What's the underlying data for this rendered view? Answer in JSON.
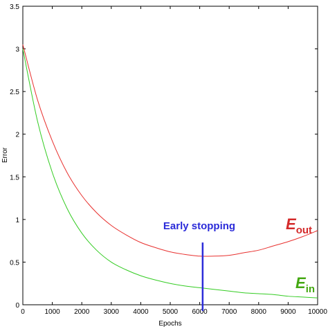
{
  "chart_data": {
    "type": "line",
    "xlabel": "Epochs",
    "ylabel": "Error",
    "xlim": [
      0,
      10000
    ],
    "ylim": [
      0,
      3.5
    ],
    "x_ticks": [
      0,
      1000,
      2000,
      3000,
      4000,
      5000,
      6000,
      7000,
      8000,
      9000,
      10000
    ],
    "y_ticks": [
      0,
      0.5,
      1,
      1.5,
      2,
      2.5,
      3,
      3.5
    ],
    "x_tick_labels": [
      "0",
      "1000",
      "2000",
      "3000",
      "4000",
      "5000",
      "6000",
      "7000",
      "8000",
      "9000",
      "10000"
    ],
    "y_tick_labels": [
      "0",
      "0.5",
      "1",
      "1.5",
      "2",
      "2.5",
      "3",
      "3.5"
    ],
    "grid": false,
    "series": [
      {
        "name": "E_out",
        "label_main": "E",
        "label_sub": "out",
        "color": "#e8302e",
        "x": [
          0,
          500,
          1000,
          1500,
          2000,
          2500,
          3000,
          3500,
          4000,
          4500,
          5000,
          5500,
          6000,
          6500,
          7000,
          7500,
          8000,
          8500,
          9000,
          9500,
          10000
        ],
        "y": [
          3.05,
          2.4,
          1.92,
          1.55,
          1.28,
          1.08,
          0.93,
          0.82,
          0.73,
          0.67,
          0.62,
          0.59,
          0.57,
          0.57,
          0.58,
          0.61,
          0.64,
          0.69,
          0.74,
          0.8,
          0.87
        ]
      },
      {
        "name": "E_in",
        "label_main": "E",
        "label_sub": "in",
        "color": "#33cc22",
        "x": [
          0,
          500,
          1000,
          1500,
          2000,
          2500,
          3000,
          3500,
          4000,
          4500,
          5000,
          5500,
          6000,
          6500,
          7000,
          7500,
          8000,
          8500,
          9000,
          9500,
          10000
        ],
        "y": [
          3.0,
          2.15,
          1.55,
          1.13,
          0.84,
          0.64,
          0.5,
          0.41,
          0.34,
          0.29,
          0.25,
          0.22,
          0.2,
          0.18,
          0.16,
          0.14,
          0.13,
          0.12,
          0.1,
          0.09,
          0.08
        ]
      }
    ],
    "annotations": [
      {
        "text": "Early stopping",
        "x": 6100,
        "y_from": 0,
        "y_to": 0.73,
        "color": "#2b2bd9"
      }
    ],
    "label_colors": {
      "out": "#d42a2a",
      "in": "#44a812"
    }
  }
}
